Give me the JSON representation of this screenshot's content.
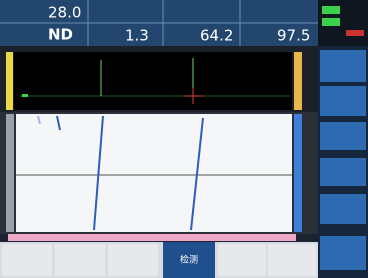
{
  "header": {
    "readings": [
      {
        "value": "28.0"
      },
      {
        "value": "ND"
      },
      {
        "value": "1.3"
      },
      {
        "value": "64.2"
      },
      {
        "value": "97.5"
      }
    ]
  },
  "bottom_bar": {
    "active_button": "检测"
  }
}
